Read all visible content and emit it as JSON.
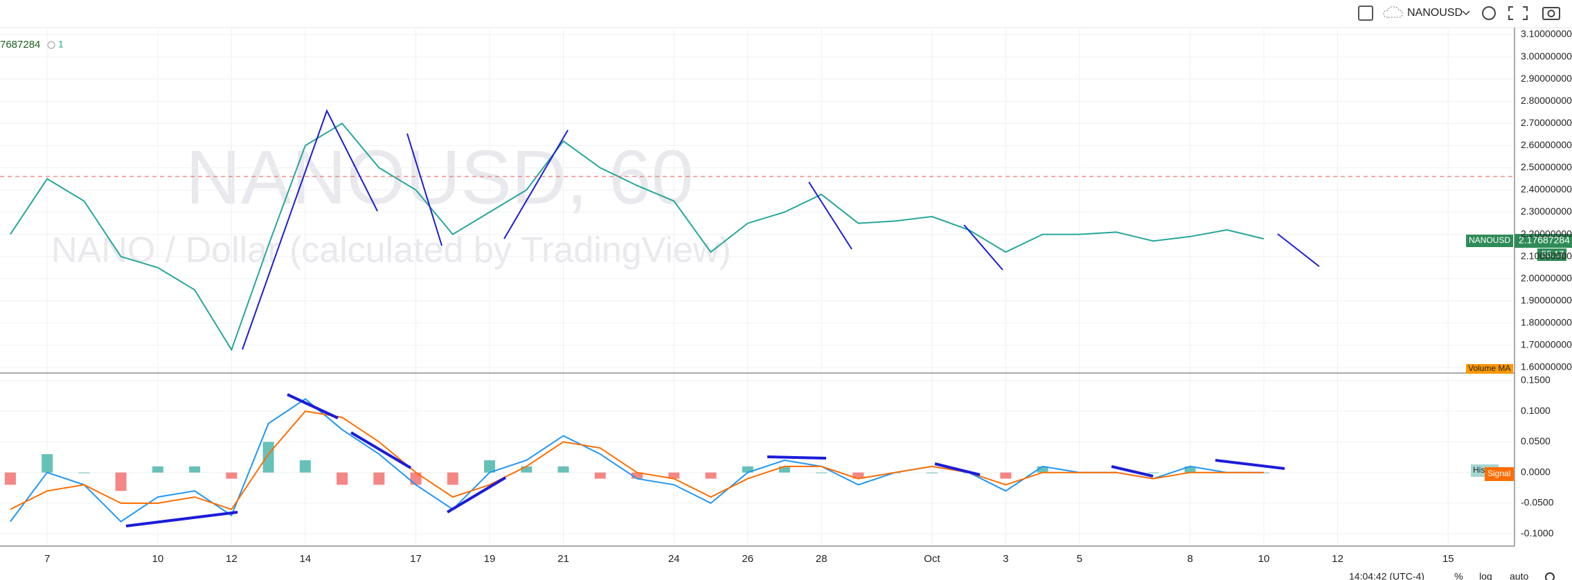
{
  "toolbar": {
    "symbol": "NANOUSD"
  },
  "legend": {
    "value": "7687284",
    "alerts": "1"
  },
  "watermark": {
    "title": "NANOUSD, 60",
    "subtitle": "NANO / Dollar (calculated by TradingView)"
  },
  "price_tag": {
    "name": "NANOUSD",
    "value": "2.17687284",
    "countdown": "55:17"
  },
  "volume_label": "Volume MA",
  "macd_labels": {
    "hist": "Hist",
    "signal": "Signal"
  },
  "status": {
    "time": "14:04:42 (UTC-4)",
    "percent": "%",
    "log": "log",
    "auto": "auto"
  },
  "chart_data": {
    "type": "line",
    "xlim": [
      -0.28,
      40.8
    ],
    "xticks": [
      {
        "value": 1,
        "label": "7"
      },
      {
        "value": 4,
        "label": "10"
      },
      {
        "value": 6,
        "label": "12"
      },
      {
        "value": 8,
        "label": "14"
      },
      {
        "value": 11,
        "label": "17"
      },
      {
        "value": 13,
        "label": "19"
      },
      {
        "value": 15,
        "label": "21"
      },
      {
        "value": 18,
        "label": "24"
      },
      {
        "value": 20,
        "label": "26"
      },
      {
        "value": 22,
        "label": "28"
      },
      {
        "value": 25,
        "label": "Oct"
      },
      {
        "value": 27,
        "label": "3"
      },
      {
        "value": 29,
        "label": "5"
      },
      {
        "value": 32,
        "label": "8"
      },
      {
        "value": 34,
        "label": "10"
      },
      {
        "value": 36,
        "label": "12"
      },
      {
        "value": 39,
        "label": "15"
      }
    ],
    "ylim": [
      1.575,
      3.125
    ],
    "yticks": [
      {
        "value": 3.1,
        "label": "3.10000000"
      },
      {
        "value": 3.0,
        "label": "3.00000000"
      },
      {
        "value": 2.9,
        "label": "2.90000000"
      },
      {
        "value": 2.8,
        "label": "2.80000000"
      },
      {
        "value": 2.7,
        "label": "2.70000000"
      },
      {
        "value": 2.6,
        "label": "2.60000000"
      },
      {
        "value": 2.5,
        "label": "2.50000000"
      },
      {
        "value": 2.4,
        "label": "2.40000000"
      },
      {
        "value": 2.3,
        "label": "2.30000000"
      },
      {
        "value": 2.2,
        "label": "2.20000000"
      },
      {
        "value": 2.1,
        "label": "2.10000000"
      },
      {
        "value": 2.0,
        "label": "2.00000000"
      },
      {
        "value": 1.9,
        "label": "1.90000000"
      },
      {
        "value": 1.8,
        "label": "1.80000000"
      },
      {
        "value": 1.7,
        "label": "1.70000000"
      },
      {
        "value": 1.6,
        "label": "1.60000000"
      }
    ],
    "series": [
      {
        "color": "#26a69a",
        "values": [
          2.2,
          2.45,
          2.35,
          2.1,
          2.05,
          1.95,
          1.68,
          2.15,
          2.6,
          2.7,
          2.5,
          2.4,
          2.2,
          2.3,
          2.4,
          2.62,
          2.5,
          2.42,
          2.35,
          2.12,
          2.25,
          2.3,
          2.38,
          2.25,
          2.26,
          2.28,
          2.22,
          2.12,
          2.2,
          2.2,
          2.21,
          2.17,
          2.19,
          2.22,
          2.18
        ]
      }
    ],
    "y2lim": [
      -0.12,
      0.16
    ],
    "y2ticks": [
      {
        "value": 0.15,
        "label": "0.1500"
      },
      {
        "value": 0.1,
        "label": "0.1000"
      },
      {
        "value": 0.05,
        "label": "0.0500"
      },
      {
        "value": 0,
        "label": "0.0000"
      },
      {
        "value": -0.05,
        "label": "-0.0500"
      },
      {
        "value": -0.1,
        "label": "-0.1000"
      }
    ],
    "macd": {
      "color": "#2196f3",
      "values": [
        -0.08,
        0.0,
        -0.02,
        -0.08,
        -0.04,
        -0.03,
        -0.07,
        0.08,
        0.12,
        0.07,
        0.03,
        -0.02,
        -0.06,
        0.0,
        0.02,
        0.06,
        0.03,
        -0.01,
        -0.02,
        -0.05,
        0.0,
        0.02,
        0.01,
        -0.02,
        0.0,
        0.01,
        0.0,
        -0.03,
        0.01,
        0.0,
        0.0,
        -0.01,
        0.01,
        0.0,
        0.0
      ]
    },
    "signal": {
      "color": "#ff6d00",
      "values": [
        -0.06,
        -0.03,
        -0.02,
        -0.05,
        -0.05,
        -0.04,
        -0.06,
        0.03,
        0.1,
        0.09,
        0.05,
        0.0,
        -0.04,
        -0.02,
        0.01,
        0.05,
        0.04,
        0.0,
        -0.01,
        -0.04,
        -0.01,
        0.01,
        0.01,
        -0.01,
        0.0,
        0.01,
        0.0,
        -0.02,
        0.0,
        0.0,
        0.0,
        -0.01,
        0.0,
        0.0,
        0.0
      ]
    },
    "histogram": {
      "up": "#26a69a",
      "down": "#ef5350",
      "values": [
        -0.02,
        0.03,
        0.0,
        -0.03,
        0.01,
        0.01,
        -0.01,
        0.05,
        0.02,
        -0.02,
        -0.02,
        -0.02,
        -0.02,
        0.02,
        0.01,
        0.01,
        -0.01,
        -0.01,
        -0.01,
        -0.01,
        0.01,
        0.01,
        0.0,
        -0.01,
        0.0,
        0.0,
        0.0,
        -0.01,
        0.01,
        0.0,
        0.0,
        0.0,
        0.01,
        0.0,
        0.0
      ]
    }
  }
}
